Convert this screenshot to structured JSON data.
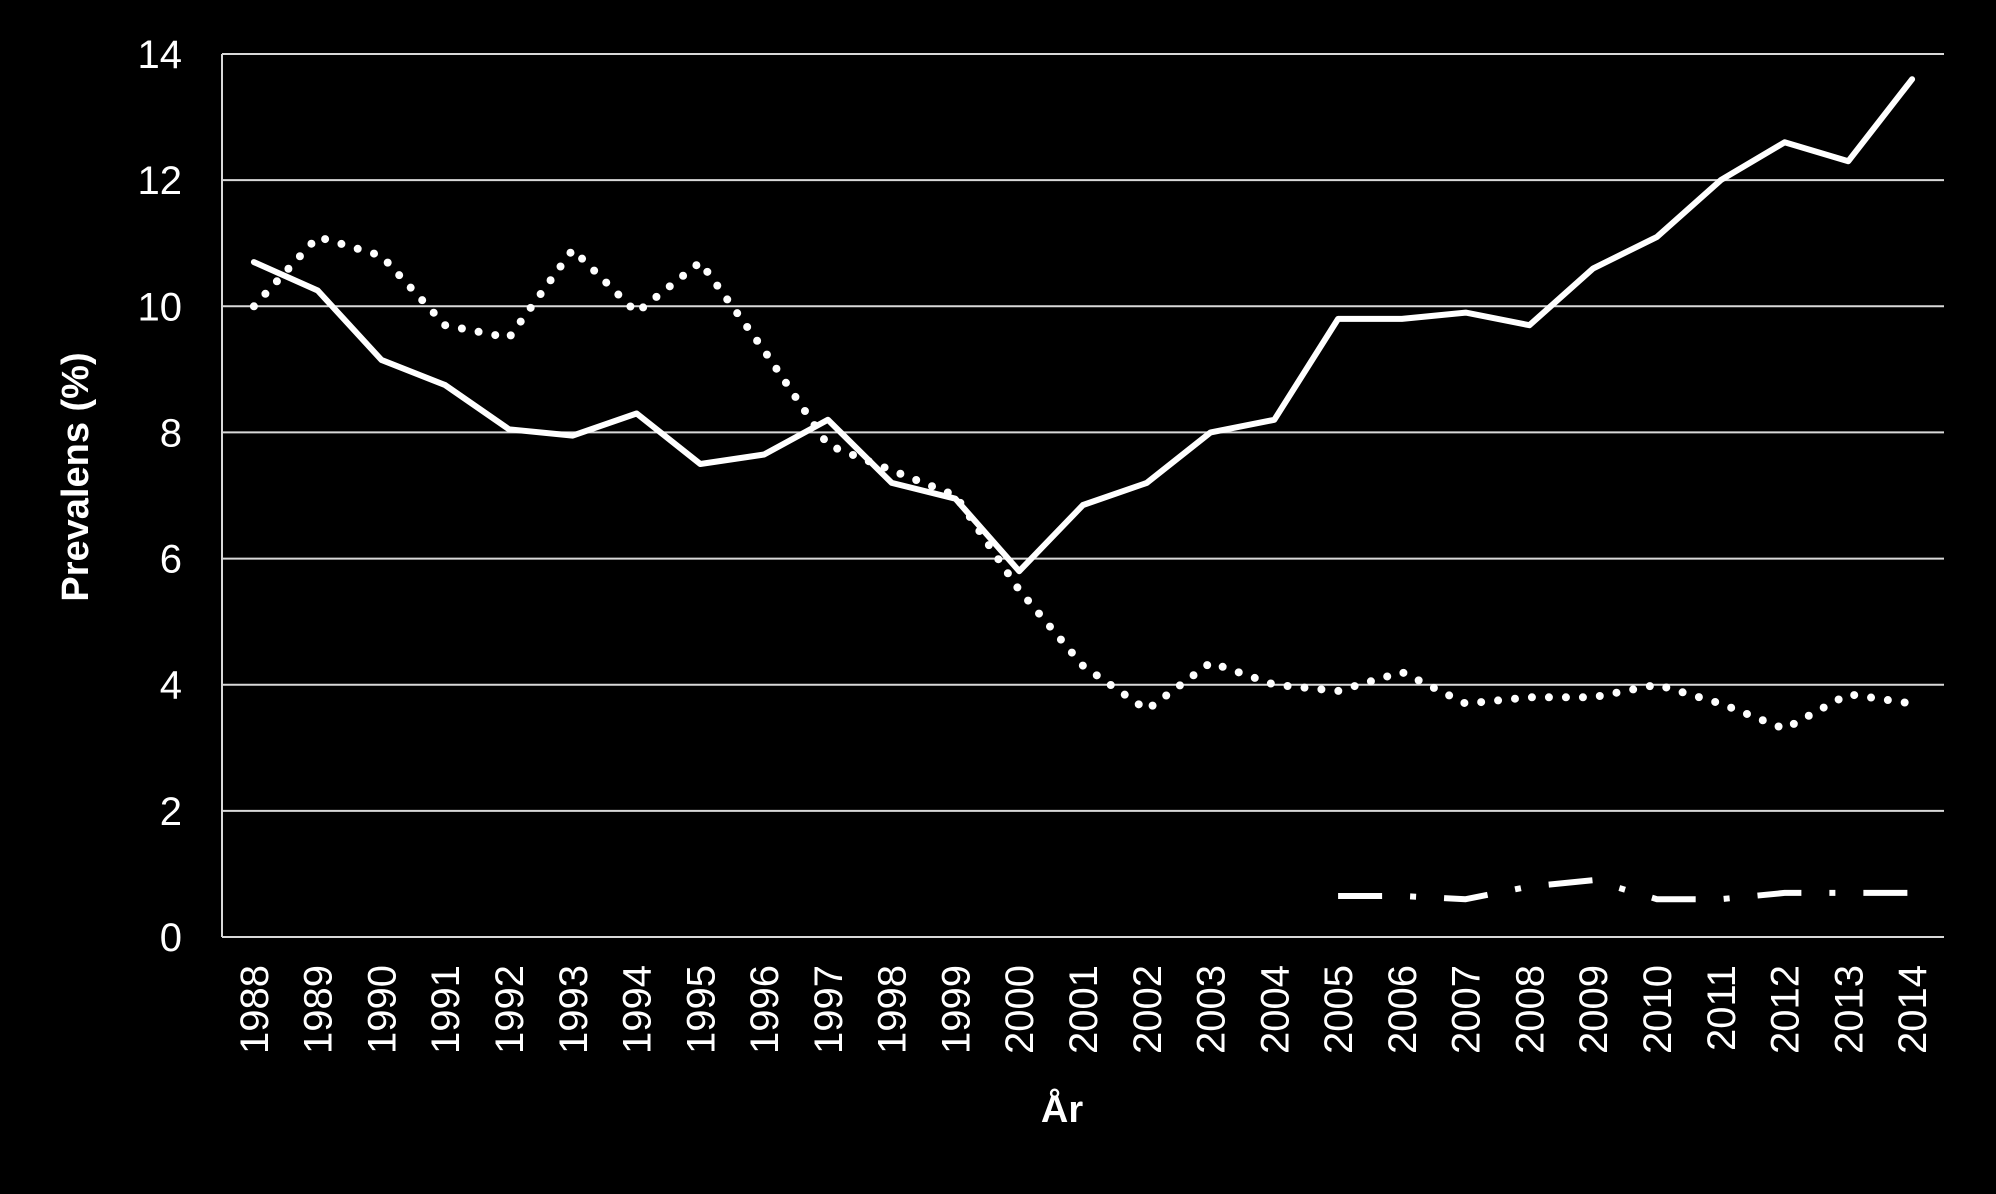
{
  "chart_data": {
    "type": "line",
    "title": "",
    "xlabel": "År",
    "ylabel": "Prevalens (%)",
    "ylim": [
      0,
      14
    ],
    "yticks": [
      0,
      2,
      4,
      6,
      8,
      10,
      12,
      14
    ],
    "grid": true,
    "legend": "none",
    "background": "#000000",
    "line_color": "#ffffff",
    "categories": [
      "1988",
      "1989",
      "1990",
      "1991",
      "1992",
      "1993",
      "1994",
      "1995",
      "1996",
      "1997",
      "1998",
      "1999",
      "2000",
      "2001",
      "2002",
      "2003",
      "2004",
      "2005",
      "2006",
      "2007",
      "2008",
      "2009",
      "2010",
      "2011",
      "2012",
      "2013",
      "2014"
    ],
    "series": [
      {
        "style": "solid",
        "values": [
          10.7,
          10.25,
          9.15,
          8.75,
          8.05,
          7.95,
          8.3,
          7.5,
          7.65,
          8.2,
          7.2,
          6.95,
          5.8,
          6.85,
          7.2,
          8.0,
          8.2,
          9.8,
          9.8,
          9.9,
          9.7,
          10.6,
          11.1,
          12.0,
          12.6,
          12.3,
          13.6
        ]
      },
      {
        "style": "dotted",
        "values": [
          10.0,
          11.1,
          10.8,
          9.7,
          9.5,
          10.9,
          9.9,
          10.7,
          9.3,
          7.8,
          7.4,
          7.0,
          5.5,
          4.3,
          3.6,
          4.35,
          4.0,
          3.9,
          4.2,
          3.7,
          3.8,
          3.8,
          4.0,
          3.7,
          3.3,
          3.85,
          3.7
        ]
      },
      {
        "style": "dashdot",
        "values": [
          null,
          null,
          null,
          null,
          null,
          null,
          null,
          null,
          null,
          null,
          null,
          null,
          null,
          null,
          null,
          null,
          null,
          0.65,
          0.65,
          0.6,
          0.8,
          0.9,
          0.6,
          0.6,
          0.7,
          0.7,
          0.7
        ]
      }
    ]
  }
}
